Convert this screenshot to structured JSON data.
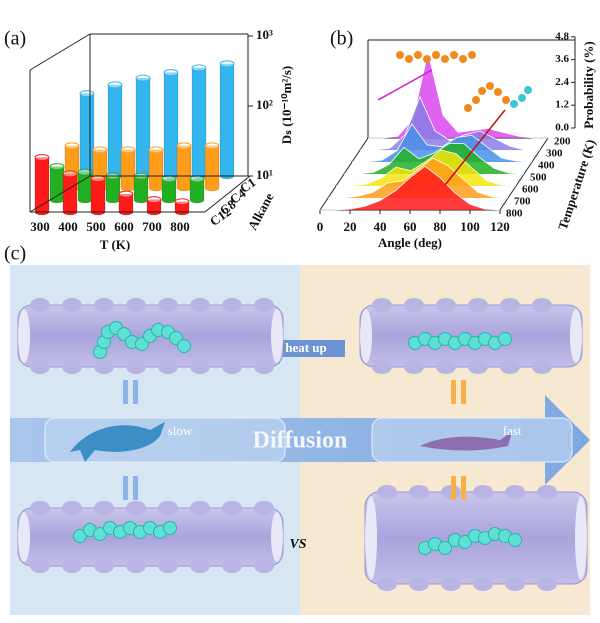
{
  "chart_data": [
    {
      "type": "bar",
      "label": "(a)",
      "xlabel": "T (K)",
      "ylabel": "Dₛ (10⁻¹⁰m²/s)",
      "zlabel": "Alkane",
      "categories": [
        "300",
        "400",
        "500",
        "600",
        "700",
        "800"
      ],
      "log_scale": true,
      "ylim": [
        10,
        1000
      ],
      "yticks": [
        {
          "value": 10,
          "label": "10¹"
        },
        {
          "value": 100,
          "label": "10²"
        },
        {
          "value": 1000,
          "label": "10³"
        }
      ],
      "series": [
        {
          "name": "C1",
          "color": "#33b5ee",
          "values": [
            150,
            200,
            250,
            300,
            350,
            400
          ]
        },
        {
          "name": "C4",
          "color": "#ff9d1a",
          "values": [
            40,
            35,
            35,
            35,
            40,
            40
          ]
        },
        {
          "name": "C8",
          "color": "#22b022",
          "values": [
            30,
            25,
            22,
            22,
            20,
            20
          ]
        },
        {
          "name": "C12",
          "color": "#ff1a1a",
          "values": [
            60,
            35,
            30,
            18,
            15,
            14
          ]
        }
      ]
    },
    {
      "type": "ridgeline",
      "label": "(b)",
      "xlabel": "Angle (deg)",
      "ylabel": "Probability (%)",
      "zlabel": "Temperature (K)",
      "x": [
        0,
        10,
        20,
        30,
        40,
        50,
        60,
        70,
        80,
        90,
        100,
        110,
        120
      ],
      "xlim": [
        0,
        120
      ],
      "xticks": [
        0,
        20,
        40,
        60,
        80,
        100,
        120
      ],
      "ylim": [
        0,
        4.8
      ],
      "yticks": [
        {
          "value": 0,
          "label": "0.0"
        },
        {
          "value": 1.2,
          "label": "1.2"
        },
        {
          "value": 2.4,
          "label": "2.4"
        },
        {
          "value": 3.6,
          "label": "3.6"
        },
        {
          "value": 4.8,
          "label": "4.8"
        }
      ],
      "series": [
        {
          "name": "200",
          "color": "#d946ef",
          "values": [
            0,
            0,
            0.1,
            1.0,
            4.5,
            1.2,
            0.3,
            0.4,
            0.5,
            0.3,
            0.1,
            0,
            0
          ]
        },
        {
          "name": "300",
          "color": "#8a7ce8",
          "values": [
            0,
            0,
            0.1,
            0.8,
            2.8,
            1.0,
            0.5,
            0.8,
            1.0,
            0.6,
            0.2,
            0,
            0
          ]
        },
        {
          "name": "400",
          "color": "#4a8fe8",
          "values": [
            0,
            0,
            0.1,
            0.6,
            2.0,
            0.9,
            0.8,
            1.3,
            1.4,
            0.8,
            0.2,
            0.05,
            0
          ]
        },
        {
          "name": "500",
          "color": "#22b022",
          "values": [
            0,
            0,
            0.1,
            0.5,
            1.4,
            0.8,
            1.1,
            1.6,
            1.6,
            0.9,
            0.3,
            0.05,
            0
          ]
        },
        {
          "name": "600",
          "color": "#f5e50a",
          "values": [
            0,
            0,
            0.1,
            0.4,
            1.0,
            0.8,
            1.3,
            1.9,
            1.7,
            1.0,
            0.3,
            0.05,
            0
          ]
        },
        {
          "name": "700",
          "color": "#ff9d1a",
          "values": [
            0,
            0,
            0.1,
            0.3,
            0.8,
            0.9,
            1.5,
            2.1,
            1.7,
            1.0,
            0.3,
            0.05,
            0
          ]
        },
        {
          "name": "800",
          "color": "#ff1a1a",
          "values": [
            0,
            0,
            0.05,
            0.2,
            0.5,
            1.0,
            1.7,
            2.3,
            1.7,
            0.9,
            0.3,
            0.05,
            0
          ]
        }
      ]
    }
  ],
  "panel_c": {
    "label": "(c)",
    "heat_up": "heat up",
    "slow": "slow",
    "fast": "fast",
    "diffusion": "Diffusion",
    "vs": "VS"
  }
}
